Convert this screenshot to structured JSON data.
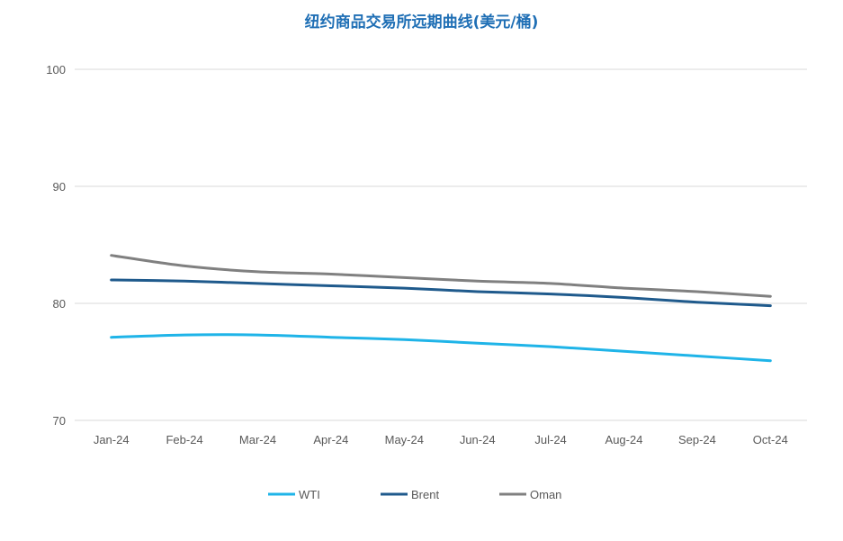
{
  "chart_data": {
    "type": "line",
    "title": "纽约商品交易所远期曲线(美元/桶)",
    "xlabel": "",
    "ylabel": "",
    "categories": [
      "Jan-24",
      "Feb-24",
      "Mar-24",
      "Apr-24",
      "May-24",
      "Jun-24",
      "Jul-24",
      "Aug-24",
      "Sep-24",
      "Oct-24"
    ],
    "ylim": [
      70,
      100
    ],
    "yticks": [
      "70",
      "80",
      "90",
      "100"
    ],
    "grid": true,
    "legend_position": "bottom",
    "series": [
      {
        "name": "WTI",
        "color": "#1fb4e8",
        "values": [
          77.1,
          77.3,
          77.3,
          77.1,
          76.9,
          76.6,
          76.3,
          75.9,
          75.5,
          75.1
        ]
      },
      {
        "name": "Brent",
        "color": "#1f5a8c",
        "values": [
          82.0,
          81.9,
          81.7,
          81.5,
          81.3,
          81.0,
          80.8,
          80.5,
          80.1,
          79.8
        ]
      },
      {
        "name": "Oman",
        "color": "#808080",
        "values": [
          84.1,
          83.2,
          82.7,
          82.5,
          82.2,
          81.9,
          81.7,
          81.3,
          81.0,
          80.6
        ]
      }
    ]
  }
}
